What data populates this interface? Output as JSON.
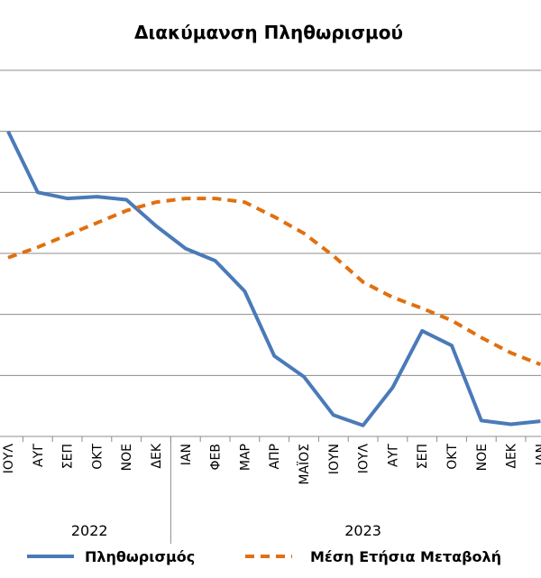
{
  "chart_data": {
    "type": "line",
    "title": "Διακύμανση Πληθωρισμού",
    "xlabel": "",
    "ylabel": "",
    "ylim": [
      0,
      6
    ],
    "grid": true,
    "legend_position": "bottom",
    "years": [
      "2022",
      "2023"
    ],
    "categories": [
      "ΙΟΥΛ",
      "ΑΥΓ",
      "ΣΕΠ",
      "ΟΚΤ",
      "ΝΟΕ",
      "ΔΕΚ",
      "ΙΑΝ",
      "ΦΕΒ",
      "ΜΑΡ",
      "ΑΠΡ",
      "ΜΑΪΟΣ",
      "ΙΟΥΝ",
      "ΙΟΥΛ",
      "ΑΥΓ",
      "ΣΕΠ",
      "ΟΚΤ",
      "ΝΟΕ",
      "ΔΕΚ",
      "ΙΑΝ"
    ],
    "series": [
      {
        "name": "Πληθωρισμός",
        "color": "#4a7ab8",
        "style": "solid",
        "values": [
          5.0,
          4.0,
          3.9,
          3.93,
          3.88,
          3.45,
          3.08,
          2.88,
          2.38,
          1.32,
          0.98,
          0.35,
          0.18,
          0.8,
          1.73,
          1.49,
          0.26,
          0.2,
          0.25
        ]
      },
      {
        "name": "Μέση Ετήσια Μεταβολή",
        "color": "#e07010",
        "style": "dashed",
        "values": [
          2.93,
          3.1,
          3.3,
          3.5,
          3.7,
          3.84,
          3.9,
          3.9,
          3.84,
          3.6,
          3.33,
          2.96,
          2.53,
          2.28,
          2.1,
          1.9,
          1.62,
          1.37,
          1.18
        ]
      }
    ]
  }
}
